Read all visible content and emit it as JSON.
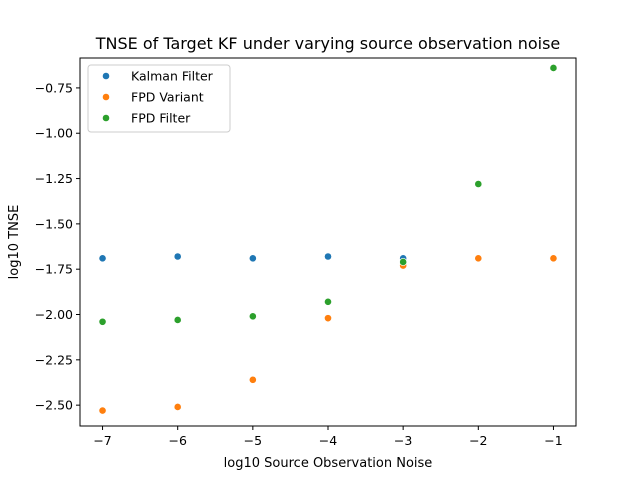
{
  "chart_data": {
    "type": "scatter",
    "title": "TNSE of Target KF under varying source observation noise",
    "xlabel": "log10 Source Observation Noise",
    "ylabel": "log10 TNSE",
    "xlim": [
      -7.3,
      -0.7
    ],
    "ylim": [
      -2.615,
      -0.585
    ],
    "xticks": [
      -7,
      -6,
      -5,
      -4,
      -3,
      -2,
      -1
    ],
    "xtick_labels": [
      "−7",
      "−6",
      "−5",
      "−4",
      "−3",
      "−2",
      "−1"
    ],
    "yticks": [
      -2.5,
      -2.25,
      -2.0,
      -1.75,
      -1.5,
      -1.25,
      -1.0,
      -0.75
    ],
    "ytick_labels": [
      "−2.50",
      "−2.25",
      "−2.00",
      "−1.75",
      "−1.50",
      "−1.25",
      "−1.00",
      "−0.75"
    ],
    "grid": false,
    "legend_position": "top-left",
    "series": [
      {
        "name": "Kalman Filter",
        "color": "#1f77b4",
        "points": [
          [
            -7,
            -1.69
          ],
          [
            -6,
            -1.68
          ],
          [
            -5,
            -1.69
          ],
          [
            -4,
            -1.68
          ],
          [
            -3,
            -1.69
          ]
        ]
      },
      {
        "name": "FPD Variant",
        "color": "#ff7f0e",
        "points": [
          [
            -7,
            -2.53
          ],
          [
            -6,
            -2.51
          ],
          [
            -5,
            -2.36
          ],
          [
            -4,
            -2.02
          ],
          [
            -3,
            -1.73
          ],
          [
            -2,
            -1.69
          ],
          [
            -1,
            -1.69
          ]
        ]
      },
      {
        "name": "FPD Filter",
        "color": "#2ca02c",
        "points": [
          [
            -7,
            -2.04
          ],
          [
            -6,
            -2.03
          ],
          [
            -5,
            -2.01
          ],
          [
            -4,
            -1.93
          ],
          [
            -3,
            -1.71
          ],
          [
            -2,
            -1.28
          ],
          [
            -1,
            -0.64
          ]
        ]
      }
    ]
  }
}
